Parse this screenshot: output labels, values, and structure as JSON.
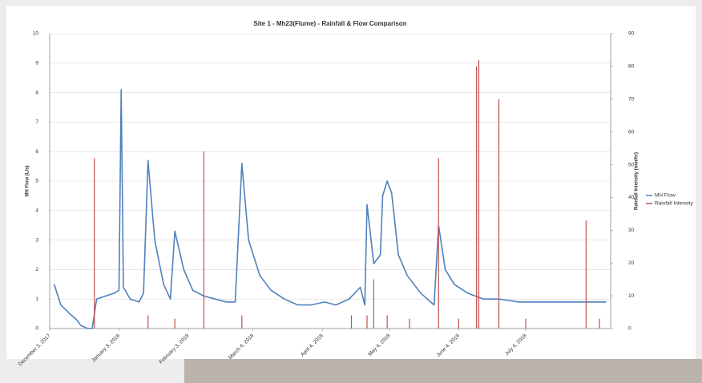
{
  "chart_data": {
    "type": "line",
    "title": "Site 1 - Mh23(Flume) - Rainfall & Flow Comparison",
    "ylabel": "MH Flow (L/s)",
    "y2label": "Rainfall Intensity (mm/hr)",
    "xlim": [
      "2017-12-03",
      "2018-08-11"
    ],
    "xticks": [
      {
        "value": "2017-12-03",
        "label": "December 3, 2017"
      },
      {
        "value": "2018-01-03",
        "label": "January 3, 2018"
      },
      {
        "value": "2018-02-03",
        "label": "February 3, 2018"
      },
      {
        "value": "2018-03-04",
        "label": "March 4, 2018"
      },
      {
        "value": "2018-04-04",
        "label": "April 4, 2018"
      },
      {
        "value": "2018-05-04",
        "label": "May 4, 2018"
      },
      {
        "value": "2018-06-04",
        "label": "June 4, 2018"
      },
      {
        "value": "2018-07-04",
        "label": "July 4, 2018"
      }
    ],
    "ylim": [
      0,
      10
    ],
    "yticks": [
      0,
      1,
      2,
      3,
      4,
      5,
      6,
      7,
      8,
      9,
      10
    ],
    "y2lim": [
      0,
      90
    ],
    "y2ticks": [
      0,
      10,
      20,
      30,
      40,
      50,
      60,
      70,
      80,
      90
    ],
    "grid": true,
    "legend": "right",
    "series": [
      {
        "name": "MH Flow",
        "color": "#4f81bd",
        "axis": "y",
        "x": [
          "2017-12-05",
          "2017-12-08",
          "2017-12-12",
          "2017-12-15",
          "2017-12-17",
          "2017-12-20",
          "2017-12-22",
          "2017-12-24",
          "2017-12-28",
          "2018-01-01",
          "2018-01-03",
          "2018-01-04",
          "2018-01-05",
          "2018-01-08",
          "2018-01-12",
          "2018-01-14",
          "2018-01-16",
          "2018-01-19",
          "2018-01-23",
          "2018-01-26",
          "2018-01-28",
          "2018-02-01",
          "2018-02-05",
          "2018-02-10",
          "2018-02-15",
          "2018-02-20",
          "2018-02-24",
          "2018-02-27",
          "2018-03-02",
          "2018-03-07",
          "2018-03-12",
          "2018-03-18",
          "2018-03-24",
          "2018-03-30",
          "2018-04-05",
          "2018-04-10",
          "2018-04-16",
          "2018-04-21",
          "2018-04-23",
          "2018-04-24",
          "2018-04-27",
          "2018-04-30",
          "2018-05-01",
          "2018-05-03",
          "2018-05-05",
          "2018-05-08",
          "2018-05-12",
          "2018-05-18",
          "2018-05-24",
          "2018-05-26",
          "2018-05-29",
          "2018-06-02",
          "2018-06-08",
          "2018-06-15",
          "2018-06-22",
          "2018-07-01",
          "2018-07-10",
          "2018-07-20",
          "2018-07-30",
          "2018-08-09"
        ],
        "values": [
          1.5,
          0.8,
          0.5,
          0.3,
          0.1,
          0,
          0,
          1.0,
          1.1,
          1.2,
          1.3,
          8.1,
          1.4,
          1.0,
          0.9,
          1.2,
          5.7,
          3.0,
          1.5,
          1.0,
          3.3,
          2.0,
          1.3,
          1.1,
          1.0,
          0.9,
          0.9,
          5.6,
          3.0,
          1.8,
          1.3,
          1.0,
          0.8,
          0.8,
          0.9,
          0.8,
          1.0,
          1.4,
          0.8,
          4.2,
          2.2,
          2.5,
          4.5,
          5.0,
          4.6,
          2.5,
          1.8,
          1.2,
          0.8,
          3.5,
          2.0,
          1.5,
          1.2,
          1.0,
          1.0,
          0.9,
          0.9,
          0.9,
          0.9,
          0.9
        ]
      },
      {
        "name": "Rainfall Intensity",
        "color": "#c0504d",
        "axis": "y2",
        "x": [
          "2017-12-23",
          "2018-01-16",
          "2018-01-28",
          "2018-02-10",
          "2018-02-27",
          "2018-04-17",
          "2018-04-24",
          "2018-04-27",
          "2018-05-03",
          "2018-05-13",
          "2018-05-26",
          "2018-06-04",
          "2018-06-12",
          "2018-06-13",
          "2018-06-22",
          "2018-07-04",
          "2018-07-31",
          "2018-08-06"
        ],
        "values": [
          52,
          4,
          3,
          54,
          4,
          4,
          4,
          15,
          4,
          3,
          52,
          3,
          80,
          82,
          70,
          3,
          33,
          3
        ]
      }
    ]
  }
}
